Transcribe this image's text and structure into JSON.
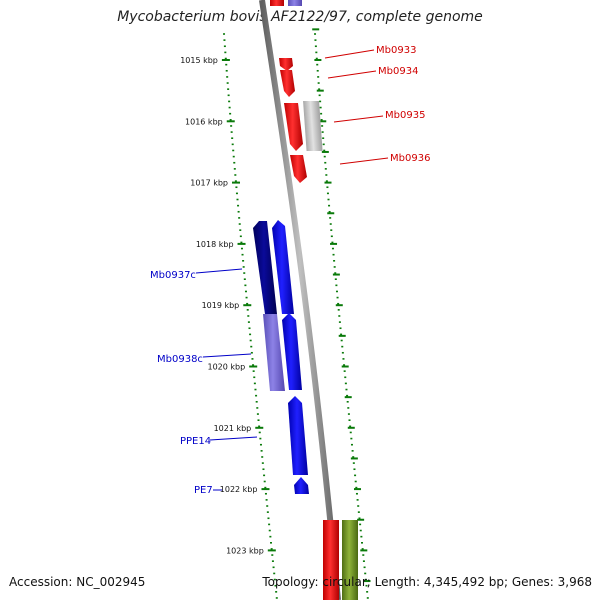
{
  "title": "Mycobacterium bovis AF2122/97, complete genome",
  "footer": {
    "accession": "Accession: NC_002945",
    "summary": "Topology: circular; Length: 4,345,492 bp; Genes: 3,968"
  },
  "ticks": [
    {
      "kbp": 1015,
      "label": "1015 kbp"
    },
    {
      "kbp": 1016,
      "label": "1016 kbp"
    },
    {
      "kbp": 1017,
      "label": "1017 kbp"
    },
    {
      "kbp": 1018,
      "label": "1018 kbp"
    },
    {
      "kbp": 1019,
      "label": "1019 kbp"
    },
    {
      "kbp": 1020,
      "label": "1020 kbp"
    },
    {
      "kbp": 1021,
      "label": "1021 kbp"
    },
    {
      "kbp": 1022,
      "label": "1022 kbp"
    },
    {
      "kbp": 1023,
      "label": "1023 kbp"
    }
  ],
  "genes_forward": [
    {
      "label": "Mb0933",
      "color": "#ff0000"
    },
    {
      "label": "Mb0934",
      "color": "#ff0000"
    },
    {
      "label": "Mb0935",
      "color": "#ff0000"
    },
    {
      "label": "Mb0936",
      "color": "#ff0000"
    }
  ],
  "genes_reverse": [
    {
      "label": "Mb0937c",
      "color": "#0000ff"
    },
    {
      "label": "Mb0938c",
      "color": "#0000ff"
    },
    {
      "label": "PPE14",
      "color": "#0000ff"
    },
    {
      "label": "PE7",
      "color": "#0000ff"
    }
  ],
  "colors": {
    "forward_gene": "#ff0000",
    "reverse_gene": "#0000ff",
    "dark_reverse": "#000080",
    "light_reverse": "#7a6fd6",
    "grey_feature": "#c8c8c8",
    "green_feature": "#6b8e23",
    "backbone": "#808080",
    "tick": "#0a7a0a"
  }
}
